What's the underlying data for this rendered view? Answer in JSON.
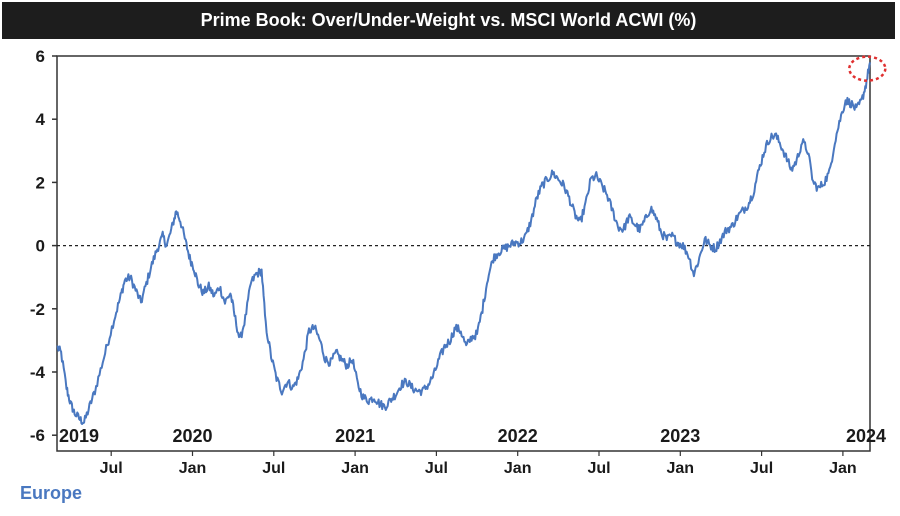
{
  "chart_data": {
    "type": "line",
    "title": "Prime Book: Over/Under-Weight vs. MSCI World ACWI (%)",
    "xlabel": "",
    "ylabel": "",
    "ylim": [
      -6.5,
      6
    ],
    "yticks": [
      -6,
      -4,
      -2,
      0,
      2,
      4,
      6
    ],
    "xlim": [
      "2019-03",
      "2024-03"
    ],
    "year_labels": [
      "2019",
      "2020",
      "2021",
      "2022",
      "2023",
      "2024"
    ],
    "month_labels": [
      {
        "label": "Jul",
        "x": "2019-07"
      },
      {
        "label": "Jan",
        "x": "2020-01"
      },
      {
        "label": "Jul",
        "x": "2020-07"
      },
      {
        "label": "Jan",
        "x": "2021-01"
      },
      {
        "label": "Jul",
        "x": "2021-07"
      },
      {
        "label": "Jan",
        "x": "2022-01"
      },
      {
        "label": "Jul",
        "x": "2022-07"
      },
      {
        "label": "Jan",
        "x": "2023-01"
      },
      {
        "label": "Jul",
        "x": "2023-07"
      },
      {
        "label": "Jan",
        "x": "2024-01"
      }
    ],
    "reference_line": {
      "y": 0,
      "style": "dotted"
    },
    "highlight": {
      "x": 59.8,
      "y": 5.6,
      "shape": "dotted circle",
      "color": "#e03030"
    },
    "series": [
      {
        "name": "Europe",
        "color": "#4a78c0",
        "x_unit": "months since Mar 2019",
        "points": [
          [
            0,
            -3.2
          ],
          [
            0.3,
            -3.4
          ],
          [
            0.7,
            -4.5
          ],
          [
            1.0,
            -5.0
          ],
          [
            1.3,
            -5.3
          ],
          [
            1.7,
            -5.5
          ],
          [
            2.0,
            -5.6
          ],
          [
            2.4,
            -5.1
          ],
          [
            2.8,
            -4.6
          ],
          [
            3.3,
            -3.8
          ],
          [
            3.8,
            -3.0
          ],
          [
            4.3,
            -2.2
          ],
          [
            4.7,
            -1.6
          ],
          [
            5.0,
            -1.1
          ],
          [
            5.4,
            -1.0
          ],
          [
            5.8,
            -1.4
          ],
          [
            6.2,
            -1.8
          ],
          [
            6.6,
            -1.2
          ],
          [
            7.0,
            -0.6
          ],
          [
            7.4,
            -0.1
          ],
          [
            7.8,
            0.3
          ],
          [
            8.1,
            0.0
          ],
          [
            8.5,
            0.6
          ],
          [
            8.8,
            1.1
          ],
          [
            9.1,
            0.8
          ],
          [
            9.5,
            0.1
          ],
          [
            9.8,
            -0.4
          ],
          [
            10.1,
            -0.7
          ],
          [
            10.4,
            -1.2
          ],
          [
            10.8,
            -1.5
          ],
          [
            11.2,
            -1.3
          ],
          [
            11.6,
            -1.6
          ],
          [
            12.0,
            -1.3
          ],
          [
            12.4,
            -1.8
          ],
          [
            12.8,
            -1.5
          ],
          [
            13.1,
            -2.2
          ],
          [
            13.5,
            -3.0
          ],
          [
            13.9,
            -2.3
          ],
          [
            14.3,
            -1.2
          ],
          [
            14.7,
            -0.9
          ],
          [
            15.1,
            -0.8
          ],
          [
            15.4,
            -2.5
          ],
          [
            15.8,
            -3.5
          ],
          [
            16.2,
            -4.2
          ],
          [
            16.6,
            -4.6
          ],
          [
            17.0,
            -4.3
          ],
          [
            17.4,
            -4.5
          ],
          [
            17.8,
            -4.2
          ],
          [
            18.2,
            -3.6
          ],
          [
            18.6,
            -2.7
          ],
          [
            19.0,
            -2.6
          ],
          [
            19.4,
            -3.0
          ],
          [
            19.8,
            -3.6
          ],
          [
            20.2,
            -3.7
          ],
          [
            20.6,
            -3.4
          ],
          [
            21.0,
            -3.6
          ],
          [
            21.4,
            -3.8
          ],
          [
            21.8,
            -3.6
          ],
          [
            22.2,
            -4.4
          ],
          [
            22.6,
            -4.8
          ],
          [
            23.0,
            -4.9
          ],
          [
            23.4,
            -4.8
          ],
          [
            23.8,
            -5.0
          ],
          [
            24.2,
            -5.1
          ],
          [
            24.6,
            -4.9
          ],
          [
            25.0,
            -4.7
          ],
          [
            25.4,
            -4.4
          ],
          [
            25.8,
            -4.3
          ],
          [
            26.2,
            -4.5
          ],
          [
            26.6,
            -4.6
          ],
          [
            27.0,
            -4.6
          ],
          [
            27.4,
            -4.4
          ],
          [
            27.8,
            -4.1
          ],
          [
            28.2,
            -3.6
          ],
          [
            28.6,
            -3.2
          ],
          [
            29.0,
            -3.0
          ],
          [
            29.4,
            -2.6
          ],
          [
            29.8,
            -2.7
          ],
          [
            30.2,
            -3.2
          ],
          [
            30.6,
            -2.9
          ],
          [
            31.0,
            -2.8
          ],
          [
            31.4,
            -2.0
          ],
          [
            31.8,
            -1.0
          ],
          [
            32.2,
            -0.4
          ],
          [
            32.6,
            -0.2
          ],
          [
            33.0,
            -0.1
          ],
          [
            33.4,
            0.0
          ],
          [
            33.8,
            0.1
          ],
          [
            34.2,
            0.1
          ],
          [
            34.6,
            0.3
          ],
          [
            35.0,
            0.8
          ],
          [
            35.4,
            1.5
          ],
          [
            35.8,
            1.9
          ],
          [
            36.2,
            2.1
          ],
          [
            36.6,
            2.3
          ],
          [
            37.0,
            2.1
          ],
          [
            37.4,
            1.9
          ],
          [
            37.8,
            1.5
          ],
          [
            38.2,
            1.0
          ],
          [
            38.6,
            0.7
          ],
          [
            39.0,
            1.3
          ],
          [
            39.4,
            2.1
          ],
          [
            39.8,
            2.2
          ],
          [
            40.2,
            1.9
          ],
          [
            40.6,
            1.6
          ],
          [
            41.0,
            1.1
          ],
          [
            41.4,
            0.6
          ],
          [
            41.8,
            0.5
          ],
          [
            42.2,
            0.9
          ],
          [
            42.6,
            0.7
          ],
          [
            43.0,
            0.5
          ],
          [
            43.4,
            0.8
          ],
          [
            43.8,
            1.2
          ],
          [
            44.2,
            0.9
          ],
          [
            44.6,
            0.4
          ],
          [
            45.0,
            0.2
          ],
          [
            45.4,
            0.3
          ],
          [
            45.8,
            0.1
          ],
          [
            46.2,
            0.0
          ],
          [
            46.6,
            -0.3
          ],
          [
            47.0,
            -0.9
          ],
          [
            47.4,
            -0.4
          ],
          [
            47.8,
            0.2
          ],
          [
            48.2,
            0.0
          ],
          [
            48.6,
            -0.1
          ],
          [
            49.0,
            0.2
          ],
          [
            49.4,
            0.5
          ],
          [
            49.8,
            0.6
          ],
          [
            50.2,
            0.9
          ],
          [
            50.6,
            1.1
          ],
          [
            51.0,
            1.3
          ],
          [
            51.4,
            1.7
          ],
          [
            51.8,
            2.4
          ],
          [
            52.2,
            3.0
          ],
          [
            52.6,
            3.4
          ],
          [
            53.0,
            3.5
          ],
          [
            53.4,
            3.2
          ],
          [
            53.8,
            2.8
          ],
          [
            54.2,
            2.4
          ],
          [
            54.6,
            2.7
          ],
          [
            55.0,
            3.3
          ],
          [
            55.4,
            3.0
          ],
          [
            55.8,
            2.0
          ],
          [
            56.2,
            1.8
          ],
          [
            56.6,
            2.0
          ],
          [
            57.0,
            2.3
          ],
          [
            57.4,
            3.3
          ],
          [
            57.8,
            4.0
          ],
          [
            58.2,
            4.6
          ],
          [
            58.6,
            4.5
          ],
          [
            59.0,
            4.3
          ],
          [
            59.4,
            4.6
          ],
          [
            59.7,
            5.1
          ],
          [
            60.0,
            5.8
          ]
        ]
      }
    ],
    "legend": {
      "entries": [
        "Europe"
      ],
      "placement": "bottom-left"
    }
  }
}
